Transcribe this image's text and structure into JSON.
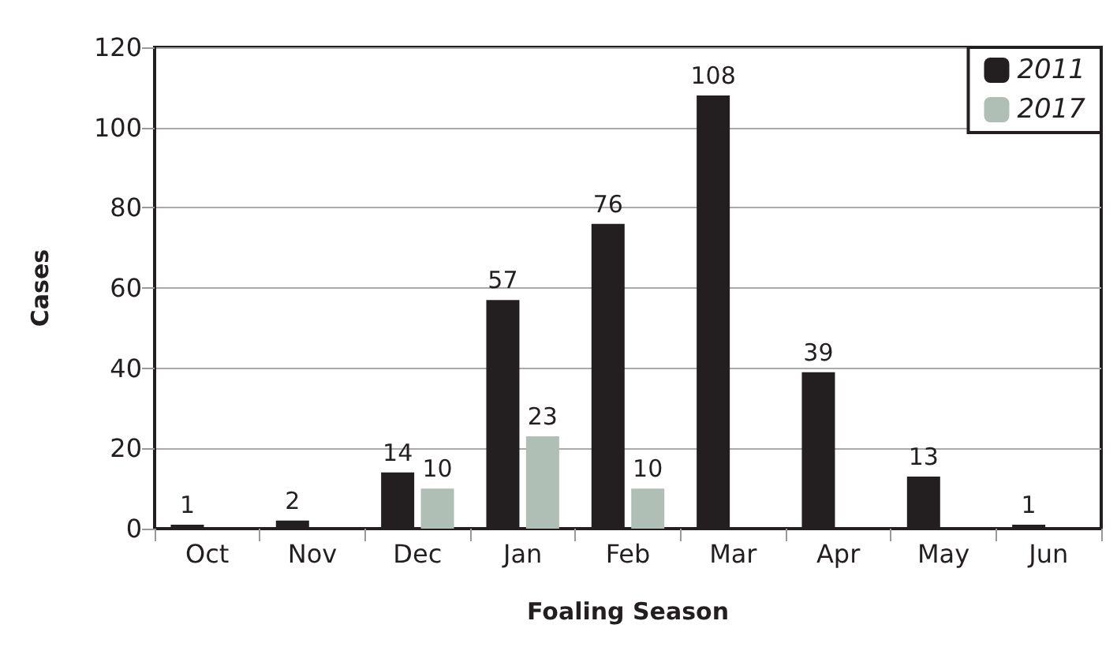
{
  "chart_data": {
    "type": "bar",
    "xlabel": "Foaling Season",
    "ylabel": "Cases",
    "categories": [
      "Oct",
      "Nov",
      "Dec",
      "Jan",
      "Feb",
      "Mar",
      "Apr",
      "May",
      "Jun"
    ],
    "series": [
      {
        "name": "2011",
        "color": "#231f20",
        "values": [
          1,
          2,
          14,
          57,
          76,
          108,
          39,
          13,
          1
        ]
      },
      {
        "name": "2017",
        "color": "#b0bfb5",
        "values": [
          null,
          null,
          10,
          23,
          10,
          null,
          null,
          null,
          null
        ]
      }
    ],
    "ylim": [
      0,
      120
    ],
    "yticks": [
      0,
      20,
      40,
      60,
      80,
      100,
      120
    ],
    "grid": "y",
    "legend": "top right",
    "data_labels": true
  }
}
